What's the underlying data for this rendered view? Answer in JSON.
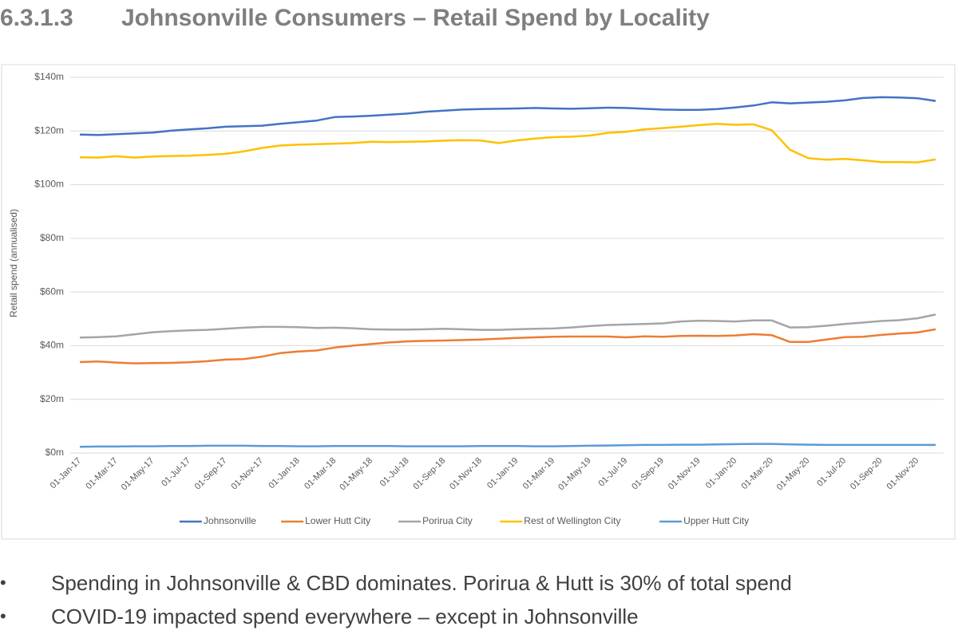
{
  "heading": {
    "number": "6.3.1.3",
    "title": "Johnsonville Consumers – Retail Spend by Locality"
  },
  "chart_data": {
    "type": "line",
    "y_label": "Retail spend (annualised)",
    "categories": [
      "01-Jan-17",
      null,
      "01-Mar-17",
      null,
      "01-May-17",
      null,
      "01-Jul-17",
      null,
      "01-Sep-17",
      null,
      "01-Nov-17",
      null,
      "01-Jan-18",
      null,
      "01-Mar-18",
      null,
      "01-May-18",
      null,
      "01-Jul-18",
      null,
      "01-Sep-18",
      null,
      "01-Nov-18",
      null,
      "01-Jan-19",
      null,
      "01-Mar-19",
      null,
      "01-May-19",
      null,
      "01-Jul-19",
      null,
      "01-Sep-19",
      null,
      "01-Nov-19",
      null,
      "01-Jan-20",
      null,
      "01-Mar-20",
      null,
      "01-May-20",
      null,
      "01-Jul-20",
      null,
      "01-Sep-20",
      null,
      "01-Nov-20",
      null
    ],
    "ylim": [
      0,
      140
    ],
    "yticks": [
      {
        "value": 0,
        "label": "$0m"
      },
      {
        "value": 20,
        "label": "$20m"
      },
      {
        "value": 40,
        "label": "$40m"
      },
      {
        "value": 60,
        "label": "$60m"
      },
      {
        "value": 80,
        "label": "$80m"
      },
      {
        "value": 100,
        "label": "$100m"
      },
      {
        "value": 120,
        "label": "$120m"
      },
      {
        "value": 140,
        "label": "$140m"
      }
    ],
    "grid": true,
    "legend": "bottom",
    "series": [
      {
        "name": "Johnsonville",
        "color": "#4472c4",
        "values": [
          118.7,
          118.5,
          118.8,
          119.1,
          119.4,
          120.1,
          120.6,
          121.0,
          121.6,
          121.8,
          122.0,
          122.7,
          123.3,
          123.9,
          125.2,
          125.4,
          125.7,
          126.1,
          126.5,
          127.2,
          127.6,
          128.0,
          128.2,
          128.3,
          128.4,
          128.6,
          128.4,
          128.3,
          128.5,
          128.7,
          128.6,
          128.3,
          128.0,
          127.9,
          127.9,
          128.2,
          128.8,
          129.5,
          130.7,
          130.3,
          130.6,
          130.9,
          131.4,
          132.3,
          132.6,
          132.5,
          132.2,
          131.2
        ]
      },
      {
        "name": "Lower Hutt City",
        "color": "#ed7d31",
        "values": [
          33.9,
          34.1,
          33.7,
          33.4,
          33.5,
          33.6,
          33.8,
          34.2,
          34.8,
          35.0,
          35.9,
          37.2,
          37.8,
          38.2,
          39.3,
          40.0,
          40.6,
          41.2,
          41.6,
          41.8,
          41.9,
          42.1,
          42.3,
          42.6,
          42.9,
          43.1,
          43.3,
          43.4,
          43.4,
          43.4,
          43.1,
          43.5,
          43.3,
          43.6,
          43.7,
          43.6,
          43.8,
          44.3,
          43.9,
          41.4,
          41.4,
          42.3,
          43.2,
          43.3,
          44.0,
          44.5,
          44.9,
          46.1
        ]
      },
      {
        "name": "Porirua City",
        "color": "#a5a5a5",
        "values": [
          43.0,
          43.2,
          43.5,
          44.2,
          45.0,
          45.4,
          45.7,
          45.9,
          46.3,
          46.7,
          47.0,
          47.0,
          46.9,
          46.6,
          46.7,
          46.5,
          46.1,
          46.0,
          46.0,
          46.1,
          46.3,
          46.1,
          45.9,
          45.9,
          46.1,
          46.3,
          46.4,
          46.8,
          47.3,
          47.7,
          47.9,
          48.1,
          48.3,
          49.0,
          49.3,
          49.2,
          49.0,
          49.4,
          49.4,
          46.8,
          46.9,
          47.4,
          48.1,
          48.6,
          49.2,
          49.5,
          50.2,
          51.6
        ]
      },
      {
        "name": "Rest of Wellington City",
        "color": "#ffc000",
        "values": [
          110.2,
          110.1,
          110.6,
          110.1,
          110.5,
          110.7,
          110.8,
          111.1,
          111.5,
          112.4,
          113.7,
          114.6,
          114.9,
          115.1,
          115.3,
          115.5,
          116.0,
          115.9,
          116.0,
          116.1,
          116.4,
          116.6,
          116.5,
          115.5,
          116.5,
          117.2,
          117.7,
          117.9,
          118.3,
          119.3,
          119.7,
          120.6,
          121.1,
          121.6,
          122.2,
          122.7,
          122.3,
          122.5,
          120.3,
          113.0,
          109.9,
          109.3,
          109.6,
          109.1,
          108.4,
          108.4,
          108.3,
          109.4
        ]
      },
      {
        "name": "Upper Hutt City",
        "color": "#5b9bd5",
        "values": [
          2.3,
          2.4,
          2.4,
          2.5,
          2.5,
          2.6,
          2.6,
          2.7,
          2.7,
          2.7,
          2.6,
          2.6,
          2.5,
          2.5,
          2.6,
          2.6,
          2.6,
          2.6,
          2.5,
          2.5,
          2.5,
          2.5,
          2.6,
          2.6,
          2.6,
          2.5,
          2.5,
          2.6,
          2.7,
          2.8,
          2.9,
          3.0,
          3.0,
          3.1,
          3.1,
          3.2,
          3.3,
          3.4,
          3.4,
          3.2,
          3.1,
          3.0,
          3.0,
          3.0,
          3.0,
          3.0,
          3.0,
          3.0
        ]
      }
    ]
  },
  "bullets": [
    "Spending in Johnsonville & CBD dominates. Porirua & Hutt is 30% of total spend",
    "COVID-19 impacted spend everywhere – except in Johnsonville"
  ]
}
